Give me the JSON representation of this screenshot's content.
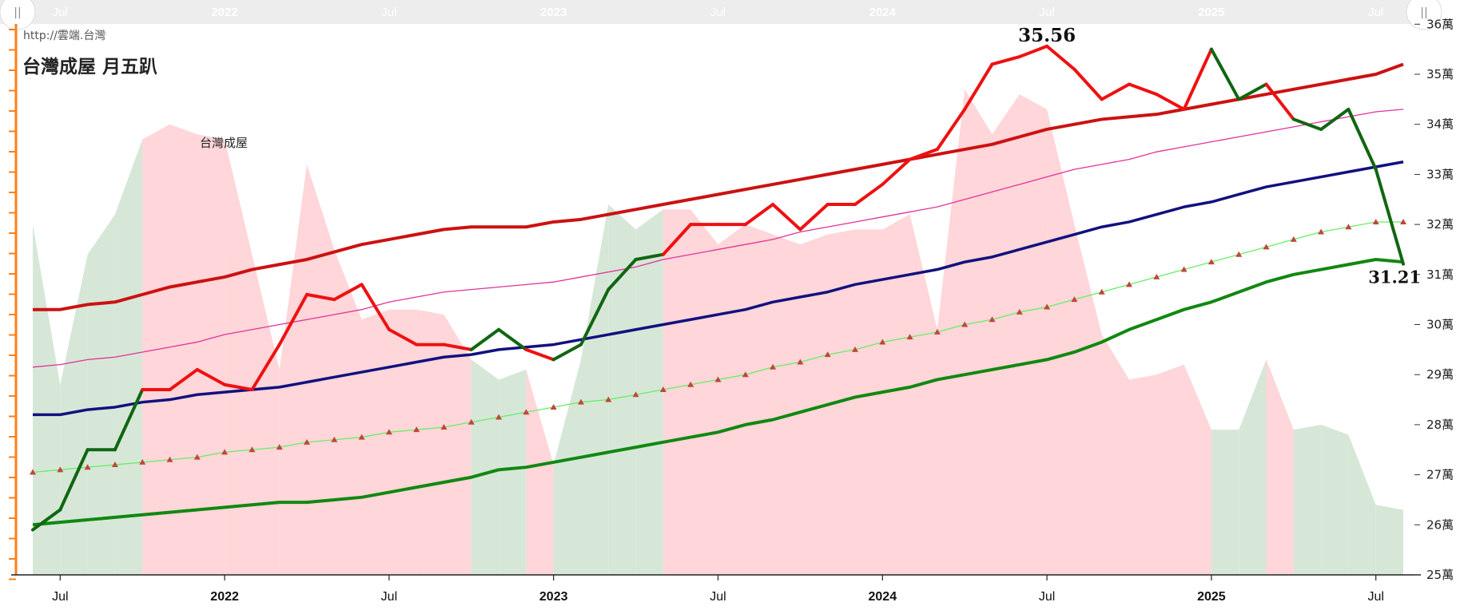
{
  "header": {
    "url": "http://雲端.台灣",
    "title": "台灣成屋 月五趴",
    "series_label": "台灣成屋"
  },
  "annotations": {
    "max_label": "35.56",
    "last_label": "31.21"
  },
  "navigator": {
    "handle_left": "||",
    "handle_right": "||"
  },
  "colors": {
    "price": "#ee1111",
    "price_dark": "#116611",
    "upper_band": "#cc1111",
    "upper_mid": "#e0339a",
    "center": "#11117f",
    "lower_mid": "#66ee66",
    "lower_band": "#118811",
    "area_up": "#ffd6d9",
    "area_down": "#d6e7d8",
    "orange_axis": "#ff7f1a"
  },
  "chart_data": {
    "type": "line",
    "title": "台灣成屋 月五趴",
    "units": "萬",
    "y_ticks": [
      "25萬",
      "26萬",
      "27萬",
      "28萬",
      "29萬",
      "30萬",
      "31萬",
      "32萬",
      "33萬",
      "34萬",
      "35萬",
      "36萬"
    ],
    "ylim": [
      25,
      36
    ],
    "y_axis_position": "right",
    "x_ticks": [
      {
        "label": "Jul",
        "x": "2021-07",
        "bold": false
      },
      {
        "label": "2022",
        "x": "2022-01",
        "bold": true
      },
      {
        "label": "Jul",
        "x": "2022-07",
        "bold": false
      },
      {
        "label": "2023",
        "x": "2023-01",
        "bold": true
      },
      {
        "label": "Jul",
        "x": "2023-07",
        "bold": false
      },
      {
        "label": "2024",
        "x": "2024-01",
        "bold": true
      },
      {
        "label": "Jul",
        "x": "2024-07",
        "bold": false
      },
      {
        "label": "2025",
        "x": "2025-01",
        "bold": true
      },
      {
        "label": "Jul",
        "x": "2025-07",
        "bold": false
      }
    ],
    "x": [
      "2021-06",
      "2021-07",
      "2021-08",
      "2021-09",
      "2021-10",
      "2021-11",
      "2021-12",
      "2022-01",
      "2022-02",
      "2022-03",
      "2022-04",
      "2022-05",
      "2022-06",
      "2022-07",
      "2022-08",
      "2022-09",
      "2022-10",
      "2022-11",
      "2022-12",
      "2023-01",
      "2023-02",
      "2023-03",
      "2023-04",
      "2023-05",
      "2023-06",
      "2023-07",
      "2023-08",
      "2023-09",
      "2023-10",
      "2023-11",
      "2023-12",
      "2024-01",
      "2024-02",
      "2024-03",
      "2024-04",
      "2024-05",
      "2024-06",
      "2024-07",
      "2024-08",
      "2024-09",
      "2024-10",
      "2024-11",
      "2024-12",
      "2025-01",
      "2025-02",
      "2025-03",
      "2025-04",
      "2025-05",
      "2025-06",
      "2025-07",
      "2025-08"
    ],
    "series": [
      {
        "name": "台灣成屋",
        "style": "price",
        "values": [
          25.9,
          26.3,
          27.5,
          27.5,
          28.7,
          28.7,
          29.1,
          28.8,
          28.7,
          29.6,
          30.6,
          30.5,
          30.8,
          29.9,
          29.6,
          29.6,
          29.5,
          29.9,
          29.5,
          29.3,
          29.6,
          30.7,
          31.3,
          31.4,
          32.0,
          32.0,
          32.0,
          32.4,
          31.9,
          32.4,
          32.4,
          32.8,
          33.3,
          33.5,
          34.3,
          35.2,
          35.35,
          35.56,
          35.1,
          34.5,
          34.8,
          34.6,
          34.3,
          35.5,
          34.5,
          34.8,
          34.1,
          33.9,
          34.3,
          33.1,
          31.21
        ]
      },
      {
        "style": "upper_band",
        "values": [
          30.3,
          30.3,
          30.4,
          30.45,
          30.6,
          30.75,
          30.85,
          30.95,
          31.1,
          31.2,
          31.3,
          31.45,
          31.6,
          31.7,
          31.8,
          31.9,
          31.95,
          31.95,
          31.95,
          32.05,
          32.1,
          32.2,
          32.3,
          32.4,
          32.5,
          32.6,
          32.7,
          32.8,
          32.9,
          33.0,
          33.1,
          33.2,
          33.3,
          33.4,
          33.5,
          33.6,
          33.75,
          33.9,
          34.0,
          34.1,
          34.15,
          34.2,
          34.3,
          34.4,
          34.5,
          34.6,
          34.7,
          34.8,
          34.9,
          35.0,
          35.2
        ]
      },
      {
        "style": "upper_mid",
        "values": [
          29.15,
          29.2,
          29.3,
          29.35,
          29.45,
          29.55,
          29.65,
          29.8,
          29.9,
          30.0,
          30.1,
          30.2,
          30.3,
          30.45,
          30.55,
          30.65,
          30.7,
          30.75,
          30.8,
          30.85,
          30.95,
          31.05,
          31.15,
          31.3,
          31.4,
          31.5,
          31.6,
          31.7,
          31.85,
          31.95,
          32.05,
          32.15,
          32.25,
          32.35,
          32.5,
          32.65,
          32.8,
          32.95,
          33.1,
          33.2,
          33.3,
          33.45,
          33.55,
          33.65,
          33.75,
          33.85,
          33.95,
          34.05,
          34.15,
          34.25,
          34.3
        ]
      },
      {
        "style": "center",
        "values": [
          28.2,
          28.2,
          28.3,
          28.35,
          28.45,
          28.5,
          28.6,
          28.65,
          28.7,
          28.75,
          28.85,
          28.95,
          29.05,
          29.15,
          29.25,
          29.35,
          29.4,
          29.5,
          29.55,
          29.6,
          29.7,
          29.8,
          29.9,
          30.0,
          30.1,
          30.2,
          30.3,
          30.45,
          30.55,
          30.65,
          30.8,
          30.9,
          31.0,
          31.1,
          31.25,
          31.35,
          31.5,
          31.65,
          31.8,
          31.95,
          32.05,
          32.2,
          32.35,
          32.45,
          32.6,
          32.75,
          32.85,
          32.95,
          33.05,
          33.15,
          33.25
        ]
      },
      {
        "style": "lower_mid",
        "values": [
          27.05,
          27.1,
          27.15,
          27.2,
          27.25,
          27.3,
          27.35,
          27.45,
          27.5,
          27.55,
          27.65,
          27.7,
          27.75,
          27.85,
          27.9,
          27.95,
          28.05,
          28.15,
          28.25,
          28.35,
          28.45,
          28.5,
          28.6,
          28.7,
          28.8,
          28.9,
          29.0,
          29.15,
          29.25,
          29.4,
          29.5,
          29.65,
          29.75,
          29.85,
          30.0,
          30.1,
          30.25,
          30.35,
          30.5,
          30.65,
          30.8,
          30.95,
          31.1,
          31.25,
          31.4,
          31.55,
          31.7,
          31.85,
          31.95,
          32.05,
          32.05
        ]
      },
      {
        "style": "lower_band",
        "values": [
          26.0,
          26.05,
          26.1,
          26.15,
          26.2,
          26.25,
          26.3,
          26.35,
          26.4,
          26.45,
          26.45,
          26.5,
          26.55,
          26.65,
          26.75,
          26.85,
          26.95,
          27.1,
          27.15,
          27.25,
          27.35,
          27.45,
          27.55,
          27.65,
          27.75,
          27.85,
          28.0,
          28.1,
          28.25,
          28.4,
          28.55,
          28.65,
          28.75,
          28.9,
          29.0,
          29.1,
          29.2,
          29.3,
          29.45,
          29.65,
          29.9,
          30.1,
          30.3,
          30.45,
          30.65,
          30.85,
          31.0,
          31.1,
          31.2,
          31.3,
          31.25
        ]
      },
      {
        "style": "area",
        "values": [
          32.0,
          28.8,
          31.4,
          32.2,
          33.7,
          34.0,
          33.8,
          33.7,
          31.4,
          29.1,
          33.2,
          31.5,
          30.1,
          30.3,
          30.3,
          30.2,
          29.3,
          28.9,
          29.1,
          27.2,
          29.3,
          32.4,
          31.9,
          32.3,
          32.3,
          31.6,
          32.0,
          31.8,
          31.6,
          31.8,
          31.9,
          31.9,
          32.2,
          29.9,
          34.7,
          33.8,
          34.6,
          34.3,
          32.0,
          29.8,
          28.9,
          29.0,
          29.2,
          27.9,
          27.9,
          29.3,
          27.9,
          28.0,
          27.8,
          26.4,
          26.3
        ]
      }
    ],
    "area_down_ranges": [
      [
        0,
        0
      ],
      [
        1,
        3
      ],
      [
        16,
        17
      ],
      [
        19,
        22
      ],
      [
        43,
        44
      ],
      [
        46,
        50
      ]
    ],
    "max": {
      "x": "2024-07",
      "value": 35.56
    },
    "last": {
      "x": "2025-08",
      "value": 31.21
    }
  }
}
